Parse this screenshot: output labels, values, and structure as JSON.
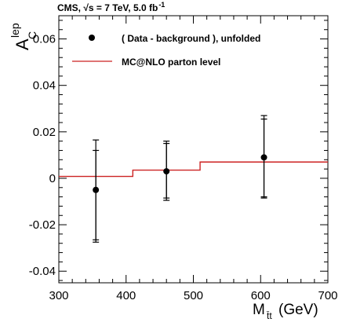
{
  "chart_data": {
    "type": "scatter",
    "title": "CMS, √s = 7 TeV, 5.0 fb",
    "title_superscript": "-1",
    "xlabel": "M",
    "xlabel_subscript": "t̄t",
    "xlabel_unit": "(GeV)",
    "ylabel": "A",
    "ylabel_subscript": "C",
    "ylabel_superscript": "lep",
    "xlim": [
      300,
      700
    ],
    "ylim": [
      -0.045,
      0.07
    ],
    "x_ticks": [
      "300",
      "400",
      "500",
      "600",
      "700"
    ],
    "y_ticks": [
      "-0.04",
      "-0.02",
      "0",
      "0.02",
      "0.04",
      "0.06"
    ],
    "grid": false,
    "legend_position": "top-left",
    "series": [
      {
        "name": "( Data - background ), unfolded",
        "marker": "circle",
        "color": "#000000",
        "x": [
          355,
          460,
          605
        ],
        "y": [
          -0.005,
          0.003,
          0.009
        ],
        "err_inner_low": [
          0.0225,
          0.0125,
          0.0175
        ],
        "err_inner_high": [
          0.017,
          0.012,
          0.0165
        ],
        "err_outer_low": [
          0.0215,
          0.0115,
          0.017
        ],
        "err_outer_high": [
          0.0215,
          0.013,
          0.018
        ]
      },
      {
        "name": "MC@NLO parton level",
        "type": "step",
        "color": "#cc2222",
        "bin_edges": [
          300,
          410,
          510,
          700
        ],
        "values": [
          0.0008,
          0.0035,
          0.007
        ]
      }
    ]
  }
}
